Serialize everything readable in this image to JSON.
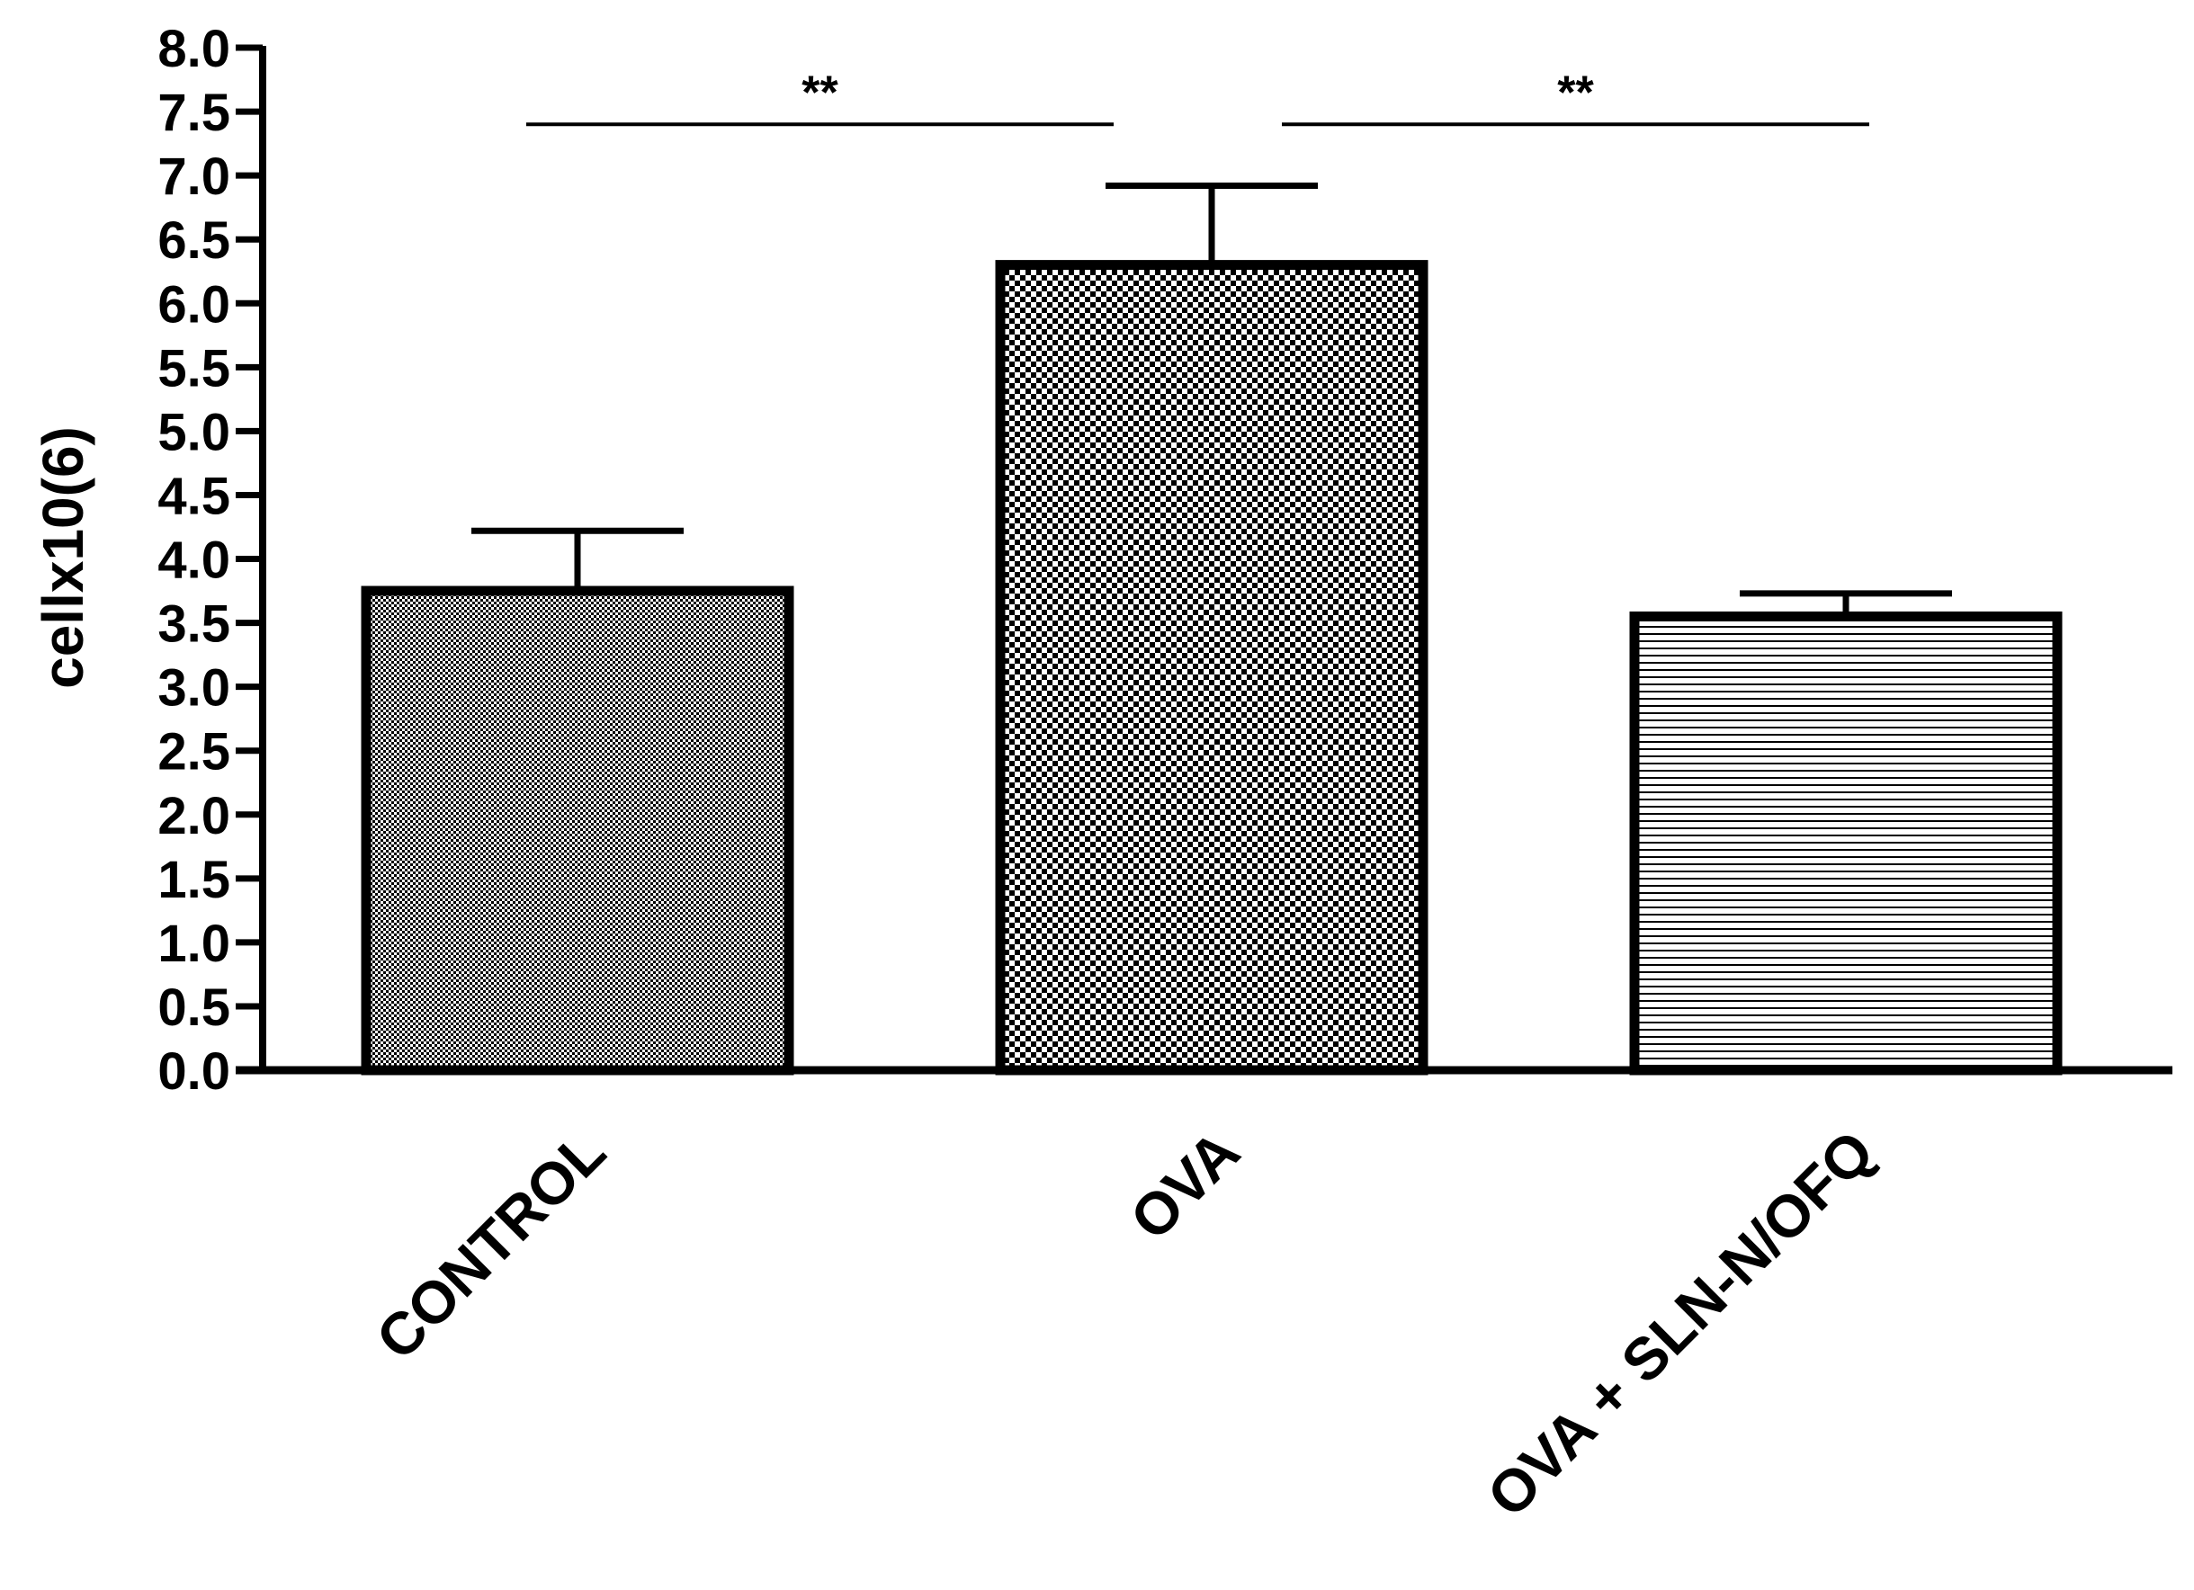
{
  "chart_data": {
    "type": "bar",
    "title": "",
    "xlabel": "",
    "ylabel": "cellx10(6)",
    "ylim": [
      0,
      8
    ],
    "yticks": [
      "0.0",
      "0.5",
      "1.0",
      "1.5",
      "2.0",
      "2.5",
      "3.0",
      "3.5",
      "4.0",
      "4.5",
      "5.0",
      "5.5",
      "6.0",
      "6.5",
      "7.0",
      "7.5",
      "8.0"
    ],
    "categories": [
      "CONTROL",
      "OVA",
      "OVA + SLN-N/OFQ"
    ],
    "values": [
      3.75,
      6.3,
      3.55
    ],
    "error_upper": [
      4.22,
      6.92,
      3.73
    ],
    "patterns": [
      "fine-dots",
      "checkerboard",
      "horizontal-lines"
    ],
    "significance": [
      {
        "from": 0,
        "to": 1,
        "label": "**",
        "y": 7.4
      },
      {
        "from": 1,
        "to": 2,
        "label": "**",
        "y": 7.4
      }
    ],
    "grid": false,
    "legend": "none",
    "colors": {
      "stroke": "#000000",
      "background": "#ffffff"
    }
  }
}
